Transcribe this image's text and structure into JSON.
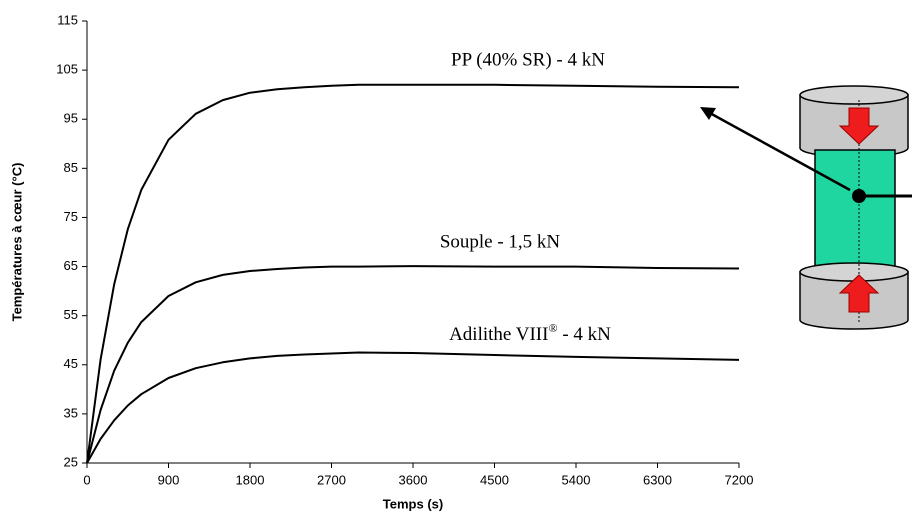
{
  "chart_data": {
    "type": "line",
    "xlabel": "Temps (s)",
    "ylabel": "Températures à cœur (°C)",
    "x": [
      0,
      150,
      300,
      450,
      600,
      900,
      1200,
      1500,
      1800,
      2100,
      2400,
      2700,
      3000,
      3600,
      4500,
      5400,
      6300,
      7200
    ],
    "series": [
      {
        "color": "#000000",
        "values": [
          25,
          46.1,
          61.4,
          72.6,
          80.6,
          90.8,
          96.1,
          98.9,
          100.4,
          101.1,
          101.5,
          101.8,
          102,
          102,
          102,
          101.8,
          101.6,
          101.5
        ]
      },
      {
        "color": "#000000",
        "values": [
          25,
          35.8,
          43.8,
          49.5,
          53.7,
          59.0,
          61.8,
          63.3,
          64.1,
          64.5,
          64.8,
          65,
          65,
          65.1,
          65,
          65,
          64.7,
          64.6
        ]
      },
      {
        "color": "#000000",
        "values": [
          25,
          29.9,
          33.7,
          36.7,
          39.0,
          42.3,
          44.3,
          45.5,
          46.3,
          46.8,
          47.1,
          47.3,
          47.5,
          47.4,
          47,
          46.6,
          46.3,
          46
        ]
      }
    ],
    "annotations": [
      "PP (40% SR) - 4 kN",
      "Souple - 1,5 kN",
      [
        "Adilithe VIII",
        "®",
        " - 4 kN"
      ]
    ],
    "xlim": [
      0,
      7200
    ],
    "xticks": [
      0,
      900,
      1800,
      2700,
      3600,
      4500,
      5400,
      6300,
      7200
    ],
    "ylim": [
      25,
      115
    ],
    "yticks": [
      25,
      35,
      45,
      55,
      65,
      75,
      85,
      95,
      105,
      115
    ],
    "grid": false
  }
}
